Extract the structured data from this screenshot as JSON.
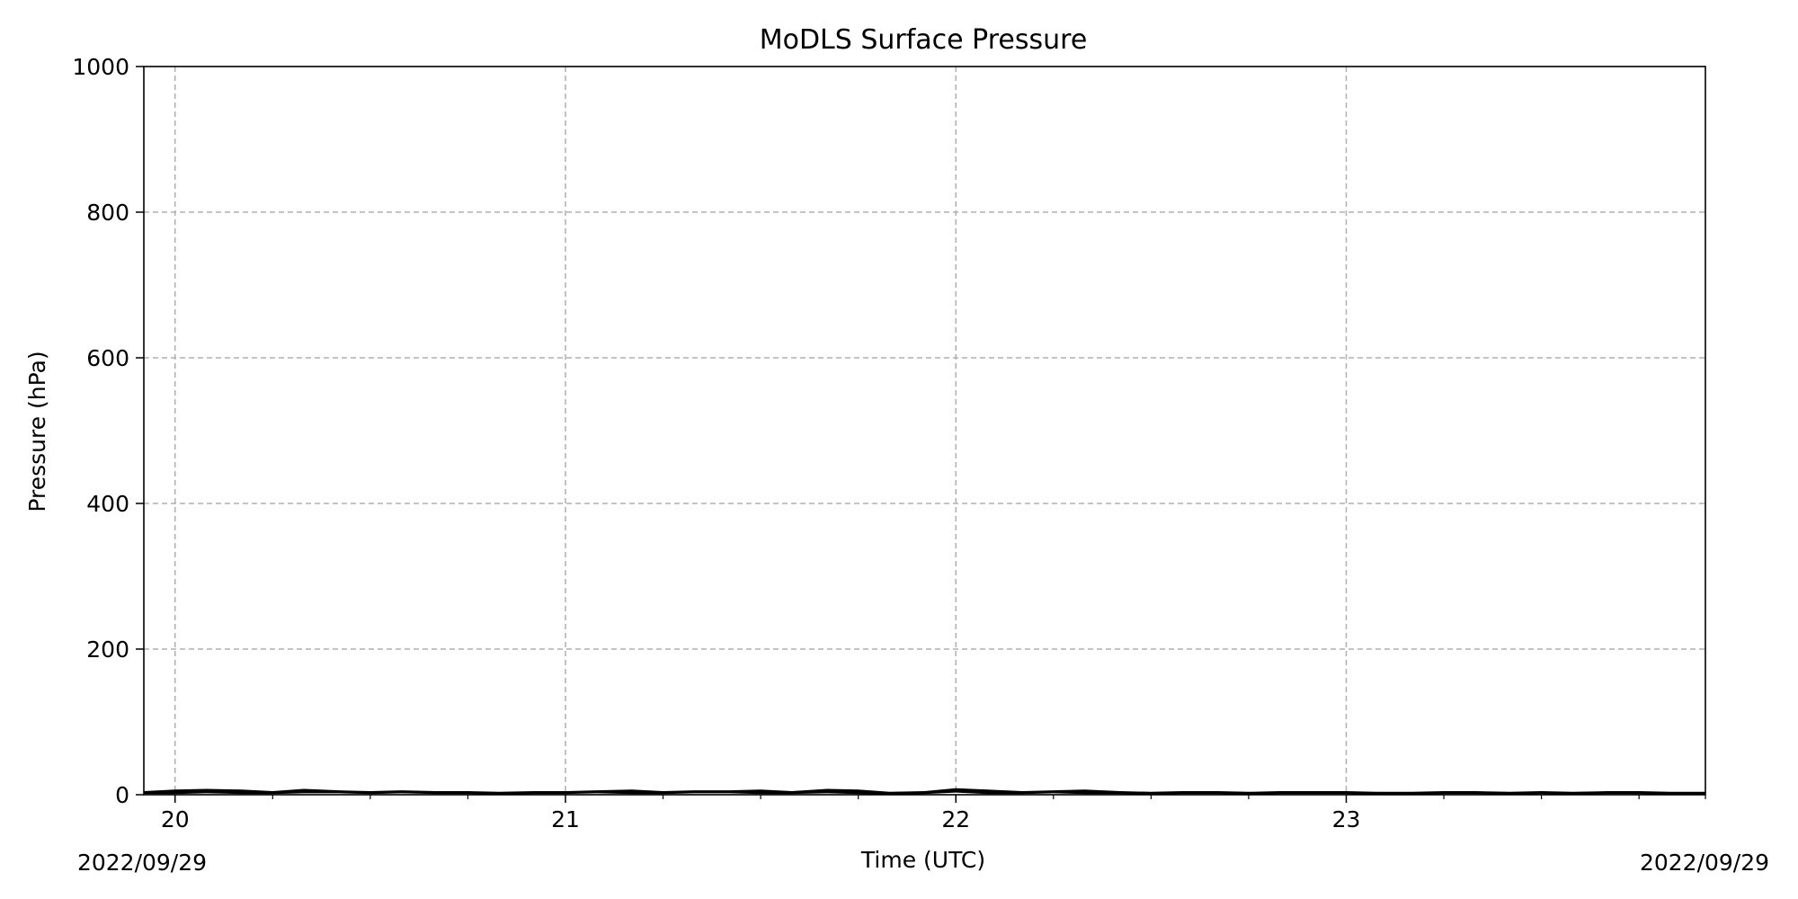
{
  "chart_data": {
    "type": "line",
    "title": "MoDLS Surface Pressure",
    "xlabel": "Time (UTC)",
    "ylabel": "Pressure (hPa)",
    "xlim": [
      19.92,
      23.92
    ],
    "ylim": [
      0,
      1000
    ],
    "x_ticks": [
      20,
      21,
      22,
      23
    ],
    "x_tick_labels": [
      "20",
      "21",
      "22",
      "23"
    ],
    "y_ticks": [
      0,
      200,
      400,
      600,
      800,
      1000
    ],
    "y_tick_labels": [
      "0",
      "200",
      "400",
      "600",
      "800",
      "1000"
    ],
    "date_left": "2022/09/29",
    "date_right": "2022/09/29",
    "grid": true,
    "series": [
      {
        "color": "#000000",
        "x": [
          19.92,
          20.0,
          20.08,
          20.17,
          20.25,
          20.33,
          20.42,
          20.5,
          20.58,
          20.67,
          20.75,
          20.83,
          20.92,
          21.0,
          21.08,
          21.17,
          21.25,
          21.33,
          21.42,
          21.5,
          21.58,
          21.67,
          21.75,
          21.83,
          21.92,
          22.0,
          22.08,
          22.17,
          22.25,
          22.33,
          22.42,
          22.5,
          22.58,
          22.67,
          22.75,
          22.83,
          22.92,
          23.0,
          23.08,
          23.17,
          23.25,
          23.33,
          23.42,
          23.5,
          23.58,
          23.67,
          23.75,
          23.83,
          23.92
        ],
        "y": [
          3,
          4,
          5,
          4,
          3,
          5,
          4,
          3,
          4,
          3,
          3,
          2,
          3,
          3,
          4,
          4,
          3,
          4,
          4,
          4,
          3,
          5,
          4,
          2,
          3,
          6,
          4,
          3,
          4,
          4,
          3,
          2,
          3,
          3,
          2,
          3,
          3,
          3,
          2,
          2,
          3,
          3,
          2,
          3,
          2,
          3,
          3,
          2,
          2
        ],
        "spread": [
          2,
          3,
          3,
          3,
          2,
          3,
          2,
          2,
          2,
          2,
          2,
          2,
          2,
          2,
          2,
          3,
          2,
          2,
          2,
          3,
          2,
          3,
          3,
          2,
          2,
          3,
          3,
          2,
          2,
          3,
          2,
          2,
          2,
          2,
          2,
          2,
          2,
          2,
          2,
          2,
          2,
          2,
          2,
          2,
          2,
          2,
          2,
          2,
          2
        ]
      }
    ]
  }
}
